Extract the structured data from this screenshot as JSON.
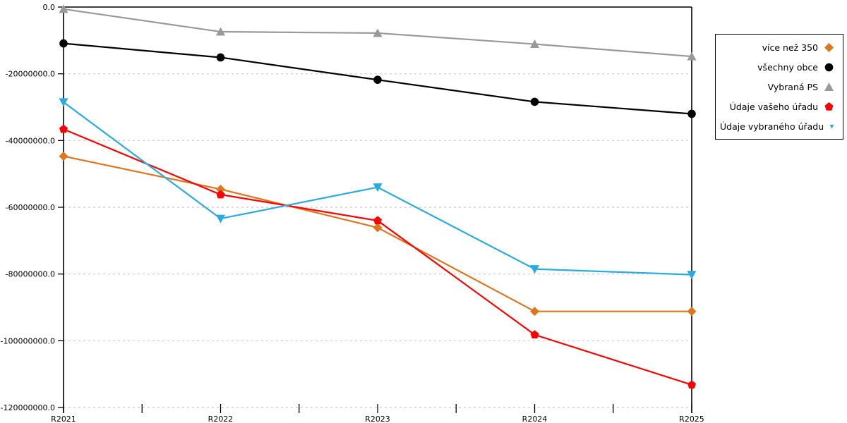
{
  "chart_data": {
    "type": "line",
    "title": "",
    "xlabel": "",
    "ylabel": "",
    "categories": [
      "R2021",
      "R2022",
      "R2023",
      "R2024",
      "R2025"
    ],
    "series": [
      {
        "name": "více než 350",
        "color": "#E0751C",
        "marker": "diamond",
        "values": [
          -44700000,
          -54600000,
          -66100000,
          -91200000,
          -91200000
        ]
      },
      {
        "name": "všechny obce",
        "color": "#000000",
        "marker": "circle",
        "values": [
          -10900000,
          -15100000,
          -21800000,
          -28400000,
          -32000000
        ]
      },
      {
        "name": "Vybraná PS",
        "color": "#999999",
        "marker": "triangle-up",
        "values": [
          -600000,
          -7400000,
          -7800000,
          -11100000,
          -14800000
        ]
      },
      {
        "name": "Údaje vašeho úřadu",
        "color": "#FF0000",
        "marker": "pentagon",
        "values": [
          -36600000,
          -56200000,
          -64000000,
          -98200000,
          -113200000
        ]
      },
      {
        "name": "Údaje vybraného úřadu",
        "color": "#29ABE2",
        "marker": "triangle-down",
        "values": [
          -28500000,
          -63400000,
          -54000000,
          -78500000,
          -80200000
        ]
      }
    ],
    "ylim": [
      -120000000,
      0
    ],
    "y_ticks": [
      {
        "value": 0,
        "label": "0.0"
      },
      {
        "value": -20000000,
        "label": "-20000000.0"
      },
      {
        "value": -40000000,
        "label": "-40000000.0"
      },
      {
        "value": -60000000,
        "label": "-60000000.0"
      },
      {
        "value": -80000000,
        "label": "-80000000.0"
      },
      {
        "value": -100000000,
        "label": "-100000000.0"
      },
      {
        "value": -120000000,
        "label": "-120000000.0"
      }
    ],
    "x_minor_ticks": "midpoints-between-categories",
    "grid": "horizontal-dashed",
    "grid_color": "#C9C9C9",
    "axis_color": "#000000",
    "background_color": "#FFFFFF",
    "legend_position": "outside-right-top"
  }
}
